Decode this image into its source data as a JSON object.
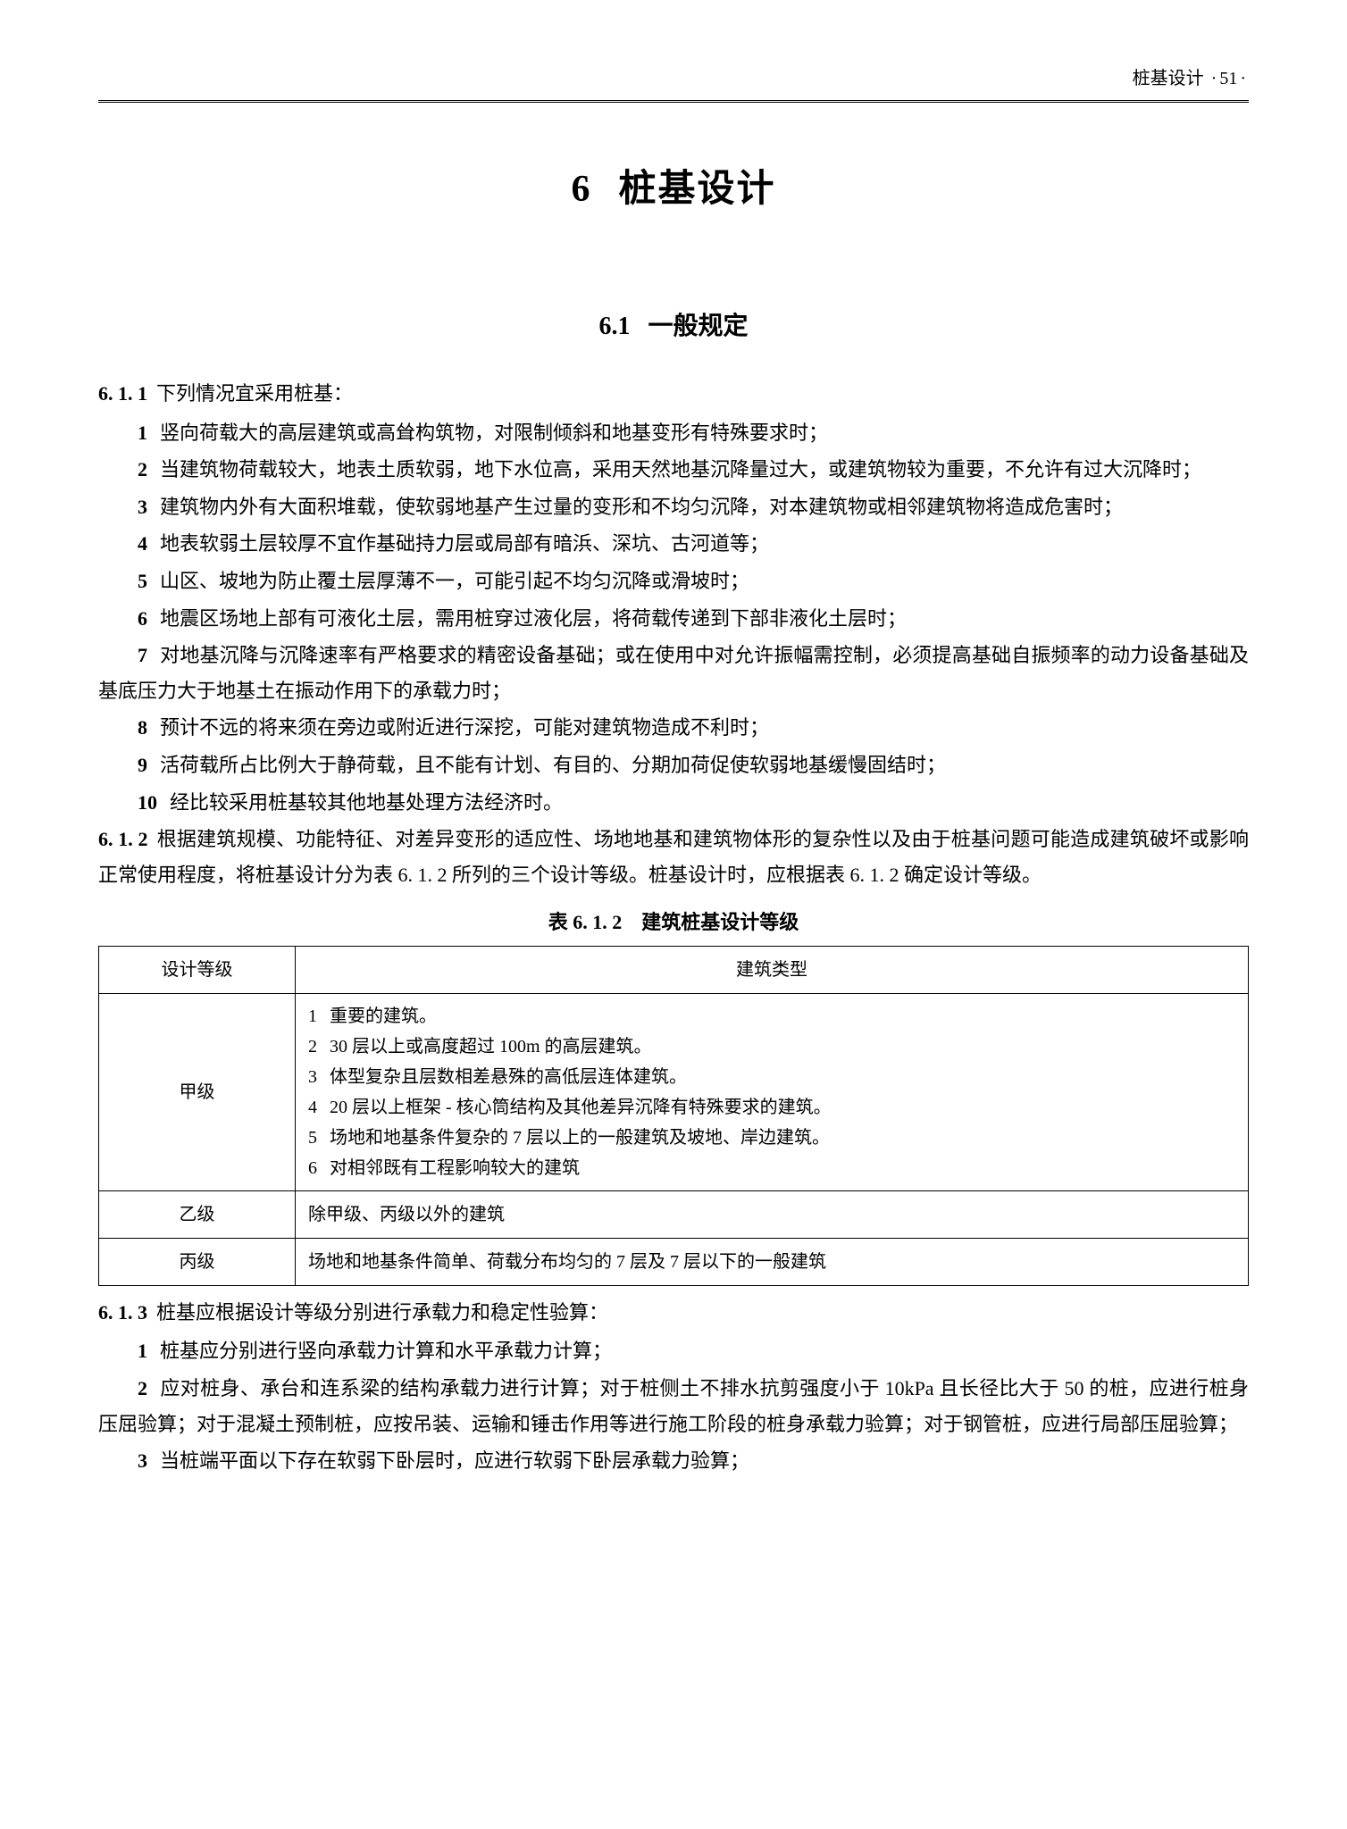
{
  "page": {
    "running_head_text": "桩基设计",
    "page_number": "51"
  },
  "chapter": {
    "number": "6",
    "title": "桩基设计"
  },
  "section": {
    "number": "6.1",
    "title": "一般规定"
  },
  "clause_6_1_1": {
    "head": "6. 1. 1",
    "intro": "下列情况宜采用桩基：",
    "items": [
      {
        "n": "1",
        "text": "竖向荷载大的高层建筑或高耸构筑物，对限制倾斜和地基变形有特殊要求时；"
      },
      {
        "n": "2",
        "text": "当建筑物荷载较大，地表土质软弱，地下水位高，采用天然地基沉降量过大，或建筑物较为重要，不允许有过大沉降时；"
      },
      {
        "n": "3",
        "text": "建筑物内外有大面积堆载，使软弱地基产生过量的变形和不均匀沉降，对本建筑物或相邻建筑物将造成危害时；"
      },
      {
        "n": "4",
        "text": "地表软弱土层较厚不宜作基础持力层或局部有暗浜、深坑、古河道等；"
      },
      {
        "n": "5",
        "text": "山区、坡地为防止覆土层厚薄不一，可能引起不均匀沉降或滑坡时；"
      },
      {
        "n": "6",
        "text": "地震区场地上部有可液化土层，需用桩穿过液化层，将荷载传递到下部非液化土层时；"
      },
      {
        "n": "7",
        "text": "对地基沉降与沉降速率有严格要求的精密设备基础；或在使用中对允许振幅需控制，必须提高基础自振频率的动力设备基础及基底压力大于地基土在振动作用下的承载力时；"
      },
      {
        "n": "8",
        "text": "预计不远的将来须在旁边或附近进行深挖，可能对建筑物造成不利时；"
      },
      {
        "n": "9",
        "text": "活荷载所占比例大于静荷载，且不能有计划、有目的、分期加荷促使软弱地基缓慢固结时；"
      },
      {
        "n": "10",
        "text": "经比较采用桩基较其他地基处理方法经济时。"
      }
    ]
  },
  "clause_6_1_2": {
    "head": "6. 1. 2",
    "text": "根据建筑规模、功能特征、对差异变形的适应性、场地地基和建筑物体形的复杂性以及由于桩基问题可能造成建筑破坏或影响正常使用程度，将桩基设计分为表 6. 1. 2 所列的三个设计等级。桩基设计时，应根据表 6. 1. 2 确定设计等级。"
  },
  "table_6_1_2": {
    "caption": "表 6. 1. 2　建筑桩基设计等级",
    "headers": {
      "grade": "设计等级",
      "type": "建筑类型"
    },
    "rows": [
      {
        "grade": "甲级",
        "items": [
          {
            "n": "1",
            "text": "重要的建筑。"
          },
          {
            "n": "2",
            "text": "30 层以上或高度超过 100m 的高层建筑。"
          },
          {
            "n": "3",
            "text": "体型复杂且层数相差悬殊的高低层连体建筑。"
          },
          {
            "n": "4",
            "text": "20 层以上框架 - 核心筒结构及其他差异沉降有特殊要求的建筑。"
          },
          {
            "n": "5",
            "text": "场地和地基条件复杂的 7 层以上的一般建筑及坡地、岸边建筑。"
          },
          {
            "n": "6",
            "text": "对相邻既有工程影响较大的建筑"
          }
        ]
      },
      {
        "grade": "乙级",
        "plain": "除甲级、丙级以外的建筑"
      },
      {
        "grade": "丙级",
        "plain": "场地和地基条件简单、荷载分布均匀的 7 层及 7 层以下的一般建筑"
      }
    ]
  },
  "clause_6_1_3": {
    "head": "6. 1. 3",
    "intro": "桩基应根据设计等级分别进行承载力和稳定性验算：",
    "items": [
      {
        "n": "1",
        "text": "桩基应分别进行竖向承载力计算和水平承载力计算；"
      },
      {
        "n": "2",
        "text": "应对桩身、承台和连系梁的结构承载力进行计算；对于桩侧土不排水抗剪强度小于 10kPa 且长径比大于 50 的桩，应进行桩身压屈验算；对于混凝土预制桩，应按吊装、运输和锤击作用等进行施工阶段的桩身承载力验算；对于钢管桩，应进行局部压屈验算；"
      },
      {
        "n": "3",
        "text": "当桩端平面以下存在软弱下卧层时，应进行软弱下卧层承载力验算；"
      }
    ]
  }
}
